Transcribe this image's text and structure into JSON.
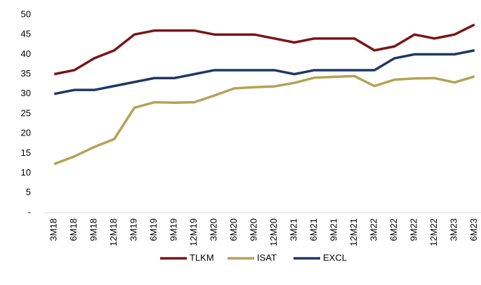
{
  "chart_data": {
    "type": "line",
    "categories": [
      "3M18",
      "6M18",
      "9M18",
      "12M18",
      "3M19",
      "6M19",
      "9M19",
      "12M19",
      "3M20",
      "6M20",
      "9M20",
      "12M20",
      "3M21",
      "6M21",
      "9M21",
      "12M21",
      "3M22",
      "6M22",
      "9M22",
      "12M22",
      "3M23",
      "6M23"
    ],
    "series": [
      {
        "name": "TLKM",
        "color": "#7b1416",
        "values": [
          35,
          36,
          39,
          41,
          45,
          46,
          46,
          46,
          45,
          45,
          45,
          44,
          43,
          44,
          44,
          44,
          41,
          42,
          45,
          44,
          45,
          47.5
        ]
      },
      {
        "name": "ISAT",
        "color": "#b5a255",
        "values": [
          12.3,
          14.2,
          16.6,
          18.6,
          26.5,
          27.9,
          27.8,
          27.9,
          29.6,
          31.4,
          31.7,
          31.9,
          32.8,
          34.1,
          34.3,
          34.5,
          32.0,
          33.6,
          33.9,
          34.0,
          32.9,
          34.4
        ]
      },
      {
        "name": "EXCL",
        "color": "#1f3864",
        "values": [
          30,
          31,
          31,
          32,
          33,
          34,
          34,
          35,
          36,
          36,
          36,
          36,
          35,
          36,
          36,
          36,
          36,
          39,
          40,
          40,
          40,
          41
        ]
      }
    ],
    "ylim": [
      0,
      50
    ],
    "yticks": [
      {
        "value": 0,
        "label": "-"
      },
      5,
      10,
      15,
      20,
      25,
      30,
      35,
      40,
      45,
      50
    ],
    "grid": false,
    "legend": "bottom"
  }
}
